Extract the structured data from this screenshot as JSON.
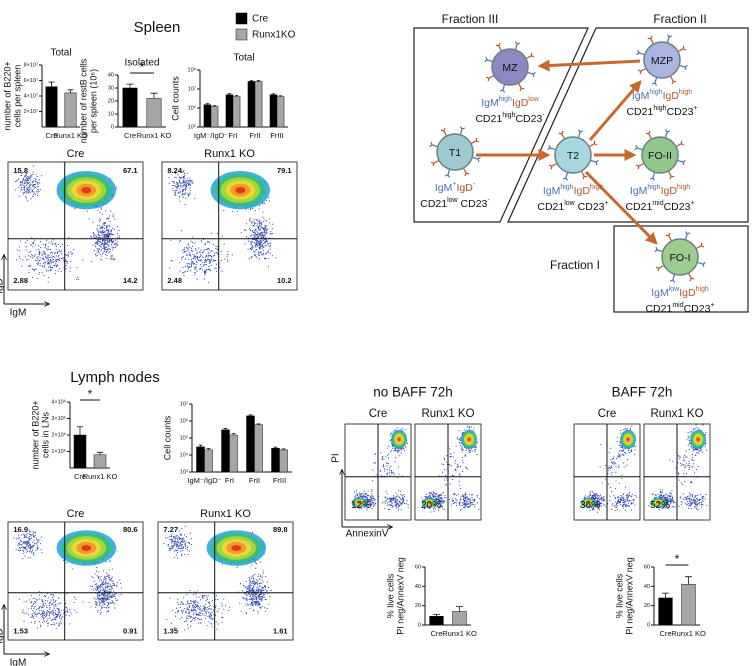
{
  "spleen": {
    "title": "Spleen",
    "total": {
      "title": "Total",
      "ylabel": [
        "number of B220+",
        "cells per spleen"
      ],
      "categories": [
        "Cre",
        "Runx1 KO"
      ],
      "values": [
        5.2,
        4.4
      ],
      "errors": [
        0.6,
        0.4
      ],
      "colors": [
        "#000000",
        "#a6a6a6"
      ],
      "ylim": [
        0,
        8
      ],
      "yticks": [
        {
          "value": 2,
          "label": "2×10⁷"
        },
        {
          "value": 4,
          "label": "4×10⁷"
        },
        {
          "value": 6,
          "label": "6×10⁷"
        },
        {
          "value": 8,
          "label": "8×10⁷"
        }
      ]
    },
    "isolated": {
      "title": "Isolated",
      "ylabel": [
        "number of restB cells",
        "per spleen (10⁶)"
      ],
      "categories": [
        "Cre",
        "Runx1 KO"
      ],
      "values": [
        30,
        22
      ],
      "errors": [
        3,
        4
      ],
      "colors": [
        "#000000",
        "#a6a6a6"
      ],
      "ylim": [
        0,
        40
      ],
      "yticks": [
        0,
        10,
        20,
        30,
        40
      ],
      "annotation": "*"
    },
    "fractions": {
      "title": "Total",
      "ylabel": [
        "Cell counts"
      ],
      "categories": [
        "IgM⁻/IgD⁻",
        "FrI",
        "FrII",
        "FrIII"
      ],
      "log": true,
      "ylim": [
        100000,
        100000000
      ],
      "yticks": [
        {
          "value": 100000,
          "label": "10⁵"
        },
        {
          "value": 1000000,
          "label": "10⁶"
        },
        {
          "value": 10000000,
          "label": "10⁷"
        },
        {
          "value": 100000000,
          "label": "10⁸"
        }
      ],
      "series": [
        {
          "name": "Cre",
          "color": "#000000",
          "values": [
            1500000,
            5000000,
            25000000,
            5000000
          ],
          "errors": [
            200000,
            800000,
            3000000,
            600000
          ]
        },
        {
          "name": "Runx1KO",
          "color": "#a6a6a6",
          "values": [
            1200000,
            4000000,
            25000000,
            4000000
          ],
          "errors": [
            150000,
            500000,
            3000000,
            400000
          ]
        }
      ]
    },
    "flow": [
      {
        "label": "Cre",
        "quadrants": [
          15.8,
          67.1,
          2.88,
          14.2
        ]
      },
      {
        "label": "Runx1 KO",
        "quadrants": [
          8.24,
          79.1,
          2.48,
          10.2
        ]
      }
    ],
    "xaxis": "IgM",
    "yaxis": "IgD"
  },
  "diagram": {
    "fractions": [
      "Fraction III",
      "Fraction II",
      "Fraction I"
    ],
    "nodes": [
      {
        "label": "MZ",
        "markers": [
          [
            "IgM",
            "high"
          ],
          [
            "IgD",
            "low"
          ]
        ],
        "cd": [
          [
            "CD21",
            "high"
          ],
          [
            "CD23",
            "-"
          ]
        ]
      },
      {
        "label": "MZP",
        "markers": [
          [
            "IgM",
            "high"
          ],
          [
            "IgD",
            "high"
          ]
        ],
        "cd": [
          [
            "CD21",
            "high"
          ],
          [
            "CD23",
            "+"
          ]
        ]
      },
      {
        "label": "T1",
        "markers": [
          [
            "IgM",
            "+"
          ],
          [
            "IgD",
            "-"
          ]
        ],
        "cd": [
          [
            "CD21",
            "low"
          ],
          [
            " CD23",
            "-"
          ]
        ]
      },
      {
        "label": "T2",
        "markers": [
          [
            "IgM",
            "high"
          ],
          [
            "IgD",
            "high"
          ]
        ],
        "cd": [
          [
            "CD21",
            "low"
          ],
          [
            " CD23",
            "+"
          ]
        ]
      },
      {
        "label": "FO-II",
        "markers": [
          [
            "IgM",
            "high"
          ],
          [
            "IgD",
            "high"
          ]
        ],
        "cd": [
          [
            "CD21",
            "mid"
          ],
          [
            "CD23",
            "+"
          ]
        ]
      },
      {
        "label": "FO-I",
        "markers": [
          [
            "IgM",
            "low"
          ],
          [
            "IgD",
            "high"
          ]
        ],
        "cd": [
          [
            "CD21",
            "mid"
          ],
          [
            "CD23",
            "+"
          ]
        ]
      }
    ]
  },
  "lymph": {
    "title": "Lymph nodes",
    "total": {
      "ylabel": [
        "number of B220+",
        "cells in LNs"
      ],
      "categories": [
        "Cre",
        "Runx1 KO"
      ],
      "values": [
        2,
        0.8
      ],
      "errors": [
        0.5,
        0.15
      ],
      "colors": [
        "#000000",
        "#a6a6a6"
      ],
      "ylim": [
        0,
        4
      ],
      "yticks": [
        {
          "value": 1,
          "label": "1×10⁶"
        },
        {
          "value": 2,
          "label": "2×10⁶"
        },
        {
          "value": 3,
          "label": "3×10⁶"
        },
        {
          "value": 4,
          "label": "4×10⁶"
        }
      ],
      "annotation": "*"
    },
    "fractions": {
      "ylabel": [
        "Cell counts"
      ],
      "categories": [
        "IgM⁻/IgD⁻",
        "FrI",
        "FrII",
        "FrIII"
      ],
      "log": true,
      "ylim": [
        1000,
        10000000
      ],
      "yticks": [
        {
          "value": 1000,
          "label": "10³"
        },
        {
          "value": 10000,
          "label": "10⁴"
        },
        {
          "value": 100000,
          "label": "10⁵"
        },
        {
          "value": 1000000,
          "label": "10⁶"
        },
        {
          "value": 10000000,
          "label": "10⁷"
        }
      ],
      "series": [
        {
          "color": "#000000",
          "values": [
            30000,
            300000,
            2000000,
            25000
          ],
          "errors": [
            8000,
            60000,
            300000,
            4000
          ]
        },
        {
          "color": "#a6a6a6",
          "values": [
            20000,
            150000,
            600000,
            20000
          ],
          "errors": [
            4000,
            30000,
            80000,
            3000
          ]
        }
      ]
    },
    "flow": [
      {
        "label": "Cre",
        "quadrants": [
          16.9,
          80.6,
          1.53,
          0.91
        ]
      },
      {
        "label": "Runx1 KO",
        "quadrants": [
          7.27,
          89.8,
          1.35,
          1.61
        ]
      }
    ],
    "xaxis": "IgM",
    "yaxis": "IgD"
  },
  "apoptosis": {
    "yaxis": "PI",
    "xaxis": "AnnexinV",
    "groups": [
      {
        "title": "no BAFF 72h",
        "plots": [
          "Cre",
          "Runx1 KO"
        ],
        "values": [
          12,
          20
        ],
        "value_labels": [
          "12%",
          "20%"
        ],
        "bars": {
          "ylabel": [
            "% live cells",
            "PI neg/AnnexV neg"
          ],
          "categories": [
            "Cre",
            "Runx1 KO"
          ],
          "values": [
            9,
            14
          ],
          "errors": [
            2,
            5
          ],
          "colors": [
            "#000000",
            "#a6a6a6"
          ],
          "ylim": [
            0,
            60
          ],
          "yticks": [
            0,
            20,
            40,
            60
          ]
        }
      },
      {
        "title": "BAFF 72h",
        "plots": [
          "Cre",
          "Runx1 KO"
        ],
        "values": [
          36,
          52
        ],
        "value_labels": [
          "36%",
          "52%"
        ],
        "bars": {
          "ylabel": [
            "% live cells",
            "PI neg/AnnexV neg"
          ],
          "categories": [
            "Cre",
            "Runx1 KO"
          ],
          "values": [
            28,
            42
          ],
          "errors": [
            5,
            8
          ],
          "colors": [
            "#000000",
            "#a6a6a6"
          ],
          "ylim": [
            0,
            60
          ],
          "yticks": [
            0,
            20,
            40,
            60
          ],
          "annotation": "*"
        }
      }
    ]
  }
}
